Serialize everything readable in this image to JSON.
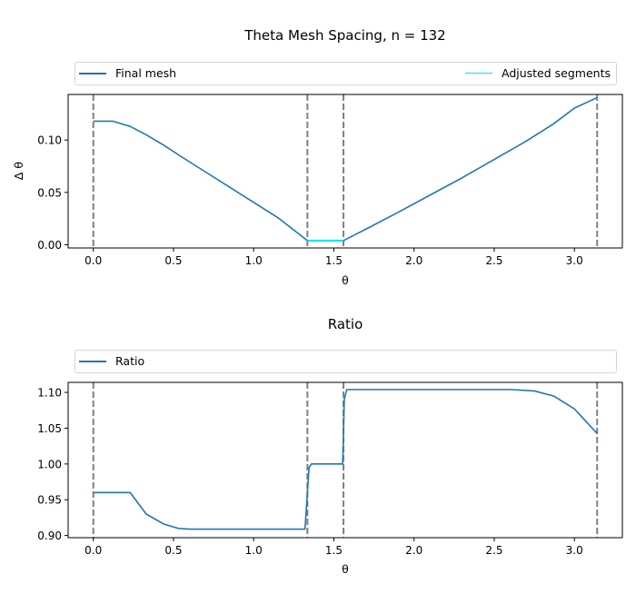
{
  "figure": {
    "title": "Theta Mesh Spacing, n = 132"
  },
  "colors": {
    "series_main": "#1f77b4",
    "series_adjusted": "#00e5ee",
    "vline": "#808080",
    "axis": "#000000"
  },
  "chart_data": [
    {
      "type": "line",
      "title": "Theta Mesh Spacing, n = 132",
      "xlabel": "θ",
      "ylabel": "Δ θ",
      "xlim": [
        -0.157,
        3.299
      ],
      "ylim": [
        -0.003,
        0.1435
      ],
      "xticks": [
        0.0,
        0.5,
        1.0,
        1.5,
        2.0,
        2.5,
        3.0
      ],
      "xtick_labels": [
        "0.0",
        "0.5",
        "1.0",
        "1.5",
        "2.0",
        "2.5",
        "3.0"
      ],
      "yticks": [
        0.0,
        0.05,
        0.1
      ],
      "ytick_labels": [
        "0.00",
        "0.05",
        "0.10"
      ],
      "grid": false,
      "legend": "top (full width), above axes",
      "vlines": [
        0.0,
        1.335,
        1.56,
        3.1416
      ],
      "series": [
        {
          "name": "Final mesh",
          "color": "#1f77b4",
          "x": [
            0.0,
            0.05,
            0.12,
            0.23,
            0.33,
            0.44,
            0.55,
            0.7,
            0.85,
            1.0,
            1.15,
            1.335,
            1.56,
            1.7,
            1.9,
            2.1,
            2.3,
            2.5,
            2.7,
            2.87,
            3.0,
            3.1416
          ],
          "y": [
            0.118,
            0.118,
            0.118,
            0.113,
            0.105,
            0.095,
            0.084,
            0.0695,
            0.055,
            0.0405,
            0.026,
            0.004,
            0.004,
            0.015,
            0.031,
            0.0475,
            0.064,
            0.0815,
            0.099,
            0.1155,
            0.1305,
            0.1405
          ]
        },
        {
          "name": "Adjusted segments",
          "color": "#00e5ee",
          "x": [
            1.335,
            1.56
          ],
          "y": [
            0.004,
            0.004
          ]
        }
      ]
    },
    {
      "type": "line",
      "title": "Ratio",
      "xlabel": "θ",
      "ylabel": "",
      "xlim": [
        -0.157,
        3.299
      ],
      "ylim": [
        0.897,
        1.114
      ],
      "xticks": [
        0.0,
        0.5,
        1.0,
        1.5,
        2.0,
        2.5,
        3.0
      ],
      "xtick_labels": [
        "0.0",
        "0.5",
        "1.0",
        "1.5",
        "2.0",
        "2.5",
        "3.0"
      ],
      "yticks": [
        0.9,
        0.95,
        1.0,
        1.05,
        1.1
      ],
      "ytick_labels": [
        "0.90",
        "0.95",
        "1.00",
        "1.05",
        "1.10"
      ],
      "grid": false,
      "legend": "top (full width), above axes",
      "vlines": [
        0.0,
        1.335,
        1.56,
        3.1416
      ],
      "series": [
        {
          "name": "Ratio",
          "color": "#1f77b4",
          "x": [
            0.0,
            0.1,
            0.23,
            0.33,
            0.44,
            0.53,
            0.6,
            0.8,
            1.0,
            1.2,
            1.32,
            1.345,
            1.36,
            1.4,
            1.5,
            1.555,
            1.565,
            1.58,
            1.7,
            2.0,
            2.3,
            2.6,
            2.75,
            2.87,
            3.0,
            3.14
          ],
          "y": [
            0.96,
            0.96,
            0.96,
            0.93,
            0.916,
            0.91,
            0.909,
            0.909,
            0.909,
            0.909,
            0.909,
            0.995,
            1.0,
            1.0,
            1.0,
            1.0,
            1.09,
            1.104,
            1.104,
            1.104,
            1.104,
            1.104,
            1.102,
            1.095,
            1.077,
            1.043
          ]
        }
      ]
    }
  ]
}
